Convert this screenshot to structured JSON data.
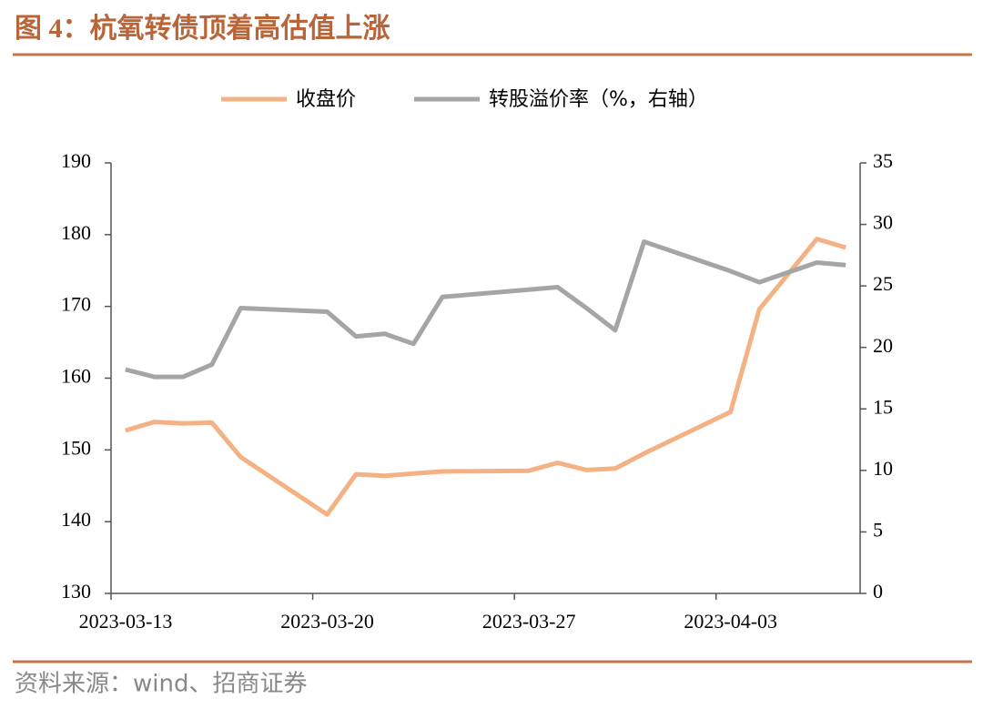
{
  "chart_data": {
    "type": "line",
    "title": "图 4：杭氧转债顶着高估值上涨",
    "source": "资料来源：wind、招商证券",
    "x": [
      "2023-03-13",
      "2023-03-14",
      "2023-03-15",
      "2023-03-16",
      "2023-03-17",
      "2023-03-20",
      "2023-03-21",
      "2023-03-22",
      "2023-03-23",
      "2023-03-24",
      "2023-03-27",
      "2023-03-28",
      "2023-03-29",
      "2023-03-30",
      "2023-03-31",
      "2023-04-03",
      "2023-04-04",
      "2023-04-05",
      "2023-04-06",
      "2023-04-07"
    ],
    "xlim": [
      "2023-03-13",
      "2023-04-08"
    ],
    "xticks": [
      "2023-03-13",
      "2023-03-20",
      "2023-03-27",
      "2023-04-03"
    ],
    "ylim": [
      130,
      190
    ],
    "yticks": [
      130,
      140,
      150,
      160,
      170,
      180,
      190
    ],
    "y2lim": [
      0,
      35
    ],
    "y2ticks": [
      0,
      5,
      10,
      15,
      20,
      25,
      30,
      35
    ],
    "series": [
      {
        "name": "收盘价",
        "color": "#f4b183",
        "values": [
          152.7,
          153.9,
          153.7,
          153.8,
          149.0,
          141.0,
          146.6,
          146.4,
          146.7,
          147.0,
          147.1,
          148.2,
          147.2,
          147.4,
          149.5,
          155.3,
          169.6,
          174.5,
          179.4,
          178.2
        ]
      },
      {
        "name": "转股溢价率（%，右轴）",
        "color": "#a5a5a5",
        "axis": "y2",
        "values": [
          18.2,
          17.6,
          17.6,
          18.6,
          23.2,
          22.9,
          20.9,
          21.1,
          20.3,
          24.1,
          24.7,
          24.9,
          23.2,
          21.4,
          28.6,
          26.2,
          25.3,
          26.1,
          26.9,
          26.7
        ]
      }
    ]
  }
}
